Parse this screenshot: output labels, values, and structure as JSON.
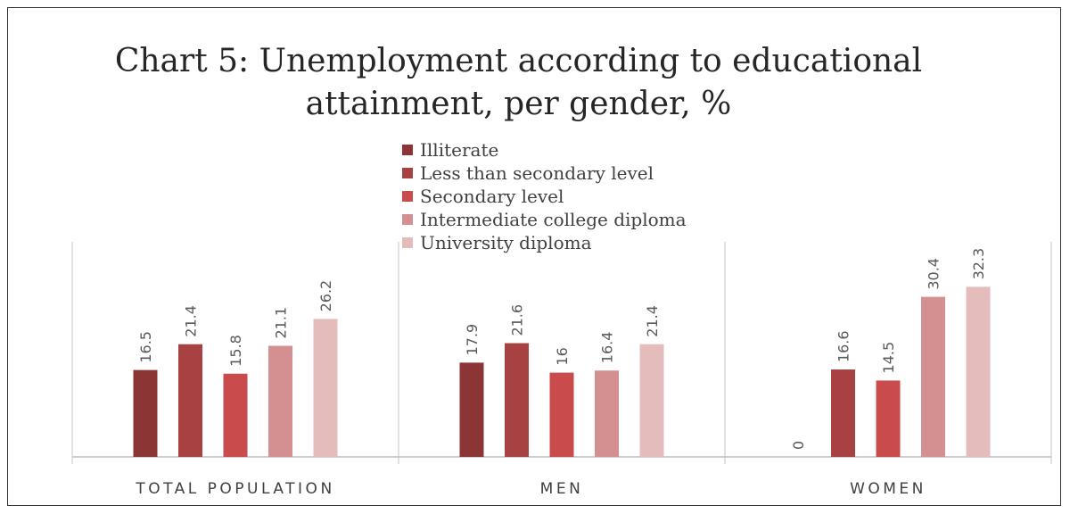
{
  "chart_data": {
    "type": "bar",
    "title_lines": [
      "Chart 5: Unemployment according to educational",
      "attainment, per gender, %"
    ],
    "categories": [
      "TOTAL POPULATION",
      "MEN",
      "WOMEN"
    ],
    "series": [
      {
        "name": "Illiterate",
        "color": "#8b3535",
        "values": [
          16.5,
          17.9,
          0
        ]
      },
      {
        "name": "Less than secondary level",
        "color": "#a84141",
        "values": [
          21.4,
          21.6,
          16.6
        ]
      },
      {
        "name": "Secondary level",
        "color": "#c94b4b",
        "values": [
          15.8,
          16,
          14.5
        ]
      },
      {
        "name": "Intermediate college diploma",
        "color": "#d49090",
        "values": [
          21.1,
          16.4,
          30.4
        ]
      },
      {
        "name": "University diploma",
        "color": "#e5bcbc",
        "values": [
          26.2,
          21.4,
          32.3
        ]
      }
    ],
    "value_labels": [
      [
        "16.5",
        "17.9",
        "0"
      ],
      [
        "21.4",
        "21.6",
        "16.6"
      ],
      [
        "15.8",
        "16",
        "14.5"
      ],
      [
        "21.1",
        "16.4",
        "30.4"
      ],
      [
        "26.2",
        "21.4",
        "32.3"
      ]
    ],
    "ylim": [
      0,
      40
    ],
    "legend_position": "top-center",
    "grid": false
  }
}
